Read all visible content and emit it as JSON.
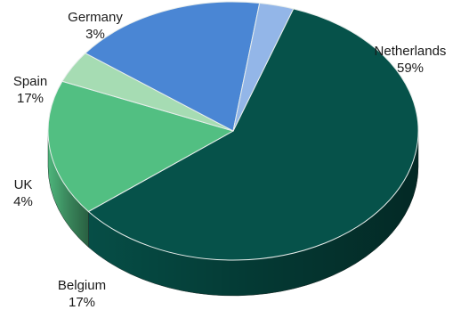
{
  "chart_data": {
    "type": "pie",
    "three_d": true,
    "legend": "none",
    "slices": [
      {
        "name": "Netherlands",
        "value": 59,
        "label": "59%",
        "color": "#06524a"
      },
      {
        "name": "Belgium",
        "value": 17,
        "label": "17%",
        "color": "#52bf82"
      },
      {
        "name": "UK",
        "value": 4,
        "label": "4%",
        "color": "#a6dcb3"
      },
      {
        "name": "Spain",
        "value": 17,
        "label": "17%",
        "color": "#4a86d4"
      },
      {
        "name": "Germany",
        "value": 3,
        "label": "3%",
        "color": "#93b6e8"
      }
    ]
  }
}
